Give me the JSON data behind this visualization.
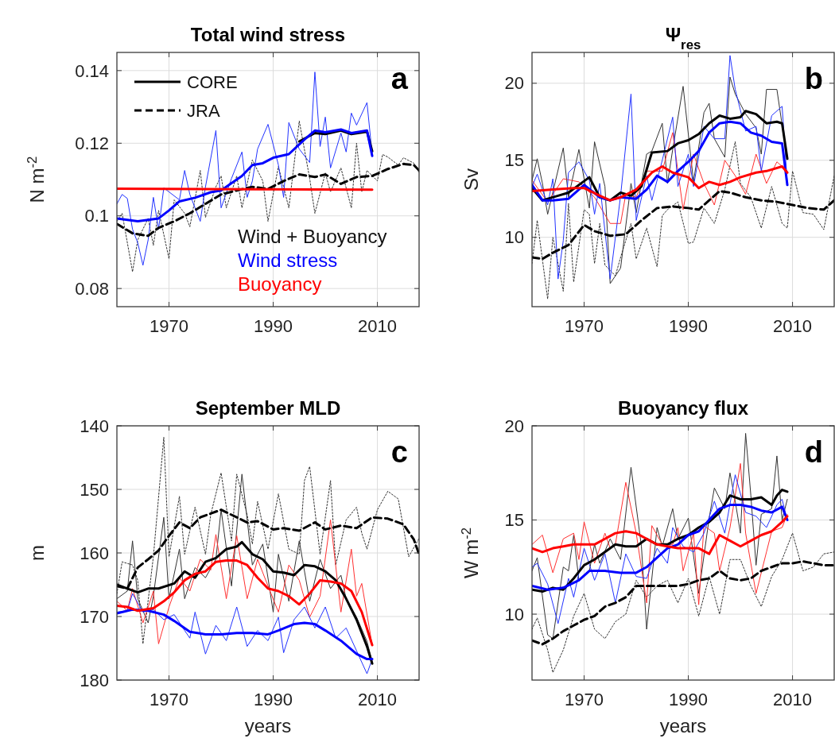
{
  "chart_data": [
    {
      "type": "line",
      "title": "Total wind stress",
      "ylabel": "N m$^{-2}$",
      "xlim": [
        1960,
        2018
      ],
      "xticks": [
        1970,
        1990,
        2010
      ],
      "ylim": [
        0.075,
        0.145
      ],
      "yticks": [
        0.08,
        0.1,
        0.12,
        0.14
      ],
      "grid": true,
      "legend": "top left",
      "annotations": [
        "a",
        "Wind + Buoyancy"
      ],
      "series": [
        {
          "color": "#333333",
          "line_style": "dotted",
          "x": [
            1960,
            1961,
            1963,
            1964,
            1966,
            1967,
            1968,
            1970,
            1971,
            1973,
            1974,
            1976,
            1977,
            1979,
            1980,
            1981,
            1983,
            1984,
            1986,
            1988,
            1989,
            1991,
            1993,
            1995,
            1997,
            1998,
            2000,
            2001,
            2003,
            2005,
            2006,
            2007,
            2008,
            2010,
            2011,
            2012,
            2014,
            2015,
            2017,
            2018
          ],
          "values": [
            0.0985,
            0.1007,
            0.0846,
            0.0934,
            0.0993,
            0.0919,
            0.1015,
            0.0882,
            0.1044,
            0.1007,
            0.097,
            0.1125,
            0.0996,
            0.108,
            0.111,
            0.1022,
            0.111,
            0.1022,
            0.1154,
            0.1096,
            0.0985,
            0.1136,
            0.1022,
            0.1261,
            0.1103,
            0.1007,
            0.1118,
            0.1066,
            0.1132,
            0.1022,
            0.12,
            0.1066,
            0.1125,
            0.1096,
            0.1169,
            0.1162,
            0.114,
            0.116,
            0.1145,
            0.112
          ]
        },
        {
          "color": "#2233ff",
          "x": [
            1960,
            1961,
            1962,
            1963,
            1964,
            1965,
            1966,
            1967,
            1968,
            1969,
            1972,
            1973,
            1974,
            1976,
            1977,
            1979,
            1980,
            1982,
            1984,
            1985,
            1986,
            1987,
            1989,
            1991,
            1992,
            1993,
            1995,
            1997,
            1998,
            1999,
            2000,
            2001,
            2003,
            2004,
            2005,
            2006,
            2008,
            2009
          ],
          "values": [
            0.1033,
            0.1059,
            0.1048,
            0.0963,
            0.0926,
            0.0864,
            0.0934,
            0.1051,
            0.0963,
            0.1077,
            0.1044,
            0.1125,
            0.1059,
            0.0985,
            0.108,
            0.1235,
            0.1022,
            0.1103,
            0.1176,
            0.1051,
            0.1096,
            0.1184,
            0.1252,
            0.114,
            0.1051,
            0.1257,
            0.1184,
            0.1147,
            0.1396,
            0.1191,
            0.1272,
            0.1132,
            0.1228,
            0.1176,
            0.1283,
            0.125,
            0.1312,
            0.1169
          ]
        },
        {
          "name": "CORE",
          "color": "#000000",
          "line_style": "solid",
          "x": [
            1995,
            1998,
            2000,
            2003,
            2005,
            2008,
            2009
          ],
          "values": [
            0.1205,
            0.1228,
            0.1225,
            0.1235,
            0.1225,
            0.1232,
            0.1178
          ]
        },
        {
          "name": "JRA",
          "color": "#000000",
          "line_style": "dashed",
          "x": [
            1960,
            1963,
            1966,
            1968,
            1971,
            1974,
            1977,
            1980,
            1983,
            1986,
            1989,
            1992,
            1995,
            1998,
            2000,
            2003,
            2006,
            2009,
            2012,
            2015,
            2017,
            2018
          ],
          "values": [
            0.0978,
            0.0952,
            0.0945,
            0.0967,
            0.0985,
            0.1007,
            0.1033,
            0.1059,
            0.107,
            0.108,
            0.1074,
            0.1096,
            0.1114,
            0.1107,
            0.1114,
            0.1088,
            0.1107,
            0.111,
            0.1129,
            0.1143,
            0.114,
            0.1125
          ]
        },
        {
          "name": "Wind stress",
          "color": "#0000ff",
          "x": [
            1960,
            1964,
            1968,
            1970,
            1972,
            1975,
            1978,
            1980,
            1982,
            1984,
            1986,
            1988,
            1990,
            1993,
            1996,
            1998,
            2000,
            2003,
            2005,
            2008,
            2009
          ],
          "values": [
            0.0993,
            0.0985,
            0.0993,
            0.1015,
            0.104,
            0.105,
            0.1065,
            0.107,
            0.109,
            0.111,
            0.114,
            0.1145,
            0.116,
            0.117,
            0.121,
            0.1235,
            0.123,
            0.1238,
            0.1228,
            0.1235,
            0.1165
          ]
        },
        {
          "name": "Buoyancy",
          "color": "#ff0000",
          "x": [
            1960,
            2009
          ],
          "values": [
            0.1075,
            0.1072
          ]
        }
      ]
    },
    {
      "type": "line",
      "title": "Ψ$_{res}$",
      "ylabel": "Sv",
      "xlim": [
        1960,
        2018
      ],
      "xticks": [
        1970,
        1990,
        2010
      ],
      "ylim": [
        5.5,
        22
      ],
      "yticks": [
        10,
        15,
        20
      ],
      "grid": true,
      "annotations": [
        "b"
      ],
      "series": [
        {
          "color": "#333333",
          "line_style": "dotted",
          "x": [
            1960,
            1961,
            1963,
            1964,
            1965,
            1966,
            1967,
            1968,
            1970,
            1971,
            1972,
            1973,
            1974,
            1976,
            1977,
            1979,
            1980,
            1982,
            1984,
            1985,
            1986,
            1988,
            1990,
            1991,
            1993,
            1995,
            1997,
            1999,
            2000,
            2002,
            2004,
            2006,
            2008,
            2009,
            2010,
            2012,
            2014,
            2016,
            2018
          ],
          "values": [
            8.3,
            11.1,
            6.0,
            10.0,
            8.3,
            6.5,
            12.2,
            7.1,
            11.8,
            11.5,
            8.3,
            10.9,
            8.2,
            7.5,
            8.7,
            10.9,
            8.6,
            10.6,
            8.1,
            11.4,
            11.8,
            12.3,
            9.6,
            9.7,
            11.9,
            10.9,
            13.1,
            16.2,
            13.5,
            12.6,
            10.6,
            13.3,
            10.9,
            10.6,
            14.3,
            11.6,
            11.5,
            10.5,
            14.0
          ]
        },
        {
          "color": "#333333",
          "x": [
            1960,
            1961,
            1962,
            1963,
            1966,
            1967,
            1969,
            1971,
            1972,
            1974,
            1975,
            1977,
            1979,
            1980,
            1982,
            1983,
            1985,
            1986,
            1987,
            1989,
            1991,
            1993,
            1994,
            1995,
            1997,
            1998,
            1999,
            2001,
            2003,
            2004,
            2005,
            2007,
            2008,
            2009
          ],
          "values": [
            13.7,
            15.1,
            13.5,
            11.5,
            15.8,
            12.6,
            15.7,
            11.9,
            16.2,
            13.3,
            7.0,
            8.0,
            13.5,
            11.6,
            15.4,
            15.6,
            17.4,
            13.5,
            15.7,
            19.8,
            13.6,
            18.1,
            18.7,
            16.4,
            15.2,
            20.4,
            19.3,
            18.0,
            17.1,
            15.4,
            19.6,
            19.6,
            17.3,
            15.1
          ]
        },
        {
          "color": "#ff3030",
          "x": [
            1960,
            1963,
            1966,
            1969,
            1972,
            1975,
            1977,
            1978,
            1980,
            1982,
            1985,
            1987,
            1989,
            1991,
            1993,
            1995,
            1997,
            1999,
            2001,
            2003,
            2005,
            2007,
            2009
          ],
          "values": [
            13.7,
            12.3,
            13.8,
            13.6,
            12.6,
            10.9,
            10.9,
            12.8,
            12.6,
            14.3,
            14.3,
            16.8,
            11.8,
            15.4,
            13.5,
            12.1,
            15.0,
            14.0,
            12.8,
            15.4,
            13.5,
            14.9,
            14.3
          ]
        },
        {
          "color": "#2233ff",
          "x": [
            1960,
            1961,
            1963,
            1964,
            1965,
            1966,
            1967,
            1969,
            1971,
            1972,
            1973,
            1975,
            1977,
            1979,
            1980,
            1982,
            1983,
            1985,
            1987,
            1988,
            1990,
            1991,
            1993,
            1995,
            1997,
            1998,
            1999,
            2001,
            2003,
            2004,
            2006,
            2008,
            2009
          ],
          "values": [
            13.3,
            14.1,
            12.1,
            13.8,
            7.3,
            9.8,
            14.2,
            14.9,
            13.7,
            11.5,
            13.5,
            7.3,
            12.7,
            19.3,
            11.1,
            14.0,
            12.4,
            15.0,
            17.8,
            13.3,
            15.4,
            13.3,
            17.2,
            16.4,
            16.4,
            21.8,
            19.6,
            16.9,
            17.2,
            14.3,
            17.9,
            18.5,
            13.5
          ]
        },
        {
          "color": "#000000",
          "line_style": "dashed",
          "x": [
            1960,
            1962,
            1964,
            1967,
            1970,
            1972,
            1975,
            1978,
            1981,
            1984,
            1987,
            1990,
            1992,
            1994,
            1996,
            1998,
            2001,
            2004,
            2007,
            2010,
            2013,
            2016,
            2018
          ],
          "values": [
            8.7,
            8.6,
            9.0,
            9.5,
            10.8,
            10.4,
            10.1,
            10.2,
            11.1,
            11.9,
            12.0,
            11.9,
            11.8,
            12.4,
            13.0,
            12.9,
            12.6,
            12.4,
            12.3,
            12.1,
            11.9,
            11.8,
            12.4
          ]
        },
        {
          "color": "#000000",
          "x": [
            1960,
            1962,
            1965,
            1967,
            1971,
            1973,
            1975,
            1977,
            1979,
            1981,
            1983,
            1986,
            1988,
            1990,
            1992,
            1994,
            1996,
            1998,
            2000,
            2001,
            2003,
            2005,
            2007,
            2008,
            2009
          ],
          "values": [
            13.2,
            12.4,
            12.7,
            12.9,
            13.9,
            12.6,
            12.4,
            12.9,
            12.7,
            13.3,
            15.5,
            15.6,
            16.1,
            16.3,
            16.7,
            17.4,
            17.9,
            17.7,
            17.8,
            18.2,
            18.0,
            17.4,
            17.5,
            17.4,
            15.1
          ]
        },
        {
          "color": "#0000ff",
          "x": [
            1960,
            1962,
            1964,
            1967,
            1970,
            1973,
            1975,
            1977,
            1980,
            1982,
            1984,
            1986,
            1988,
            1990,
            1992,
            1994,
            1996,
            1998,
            2000,
            2002,
            2004,
            2006,
            2008,
            2009
          ],
          "values": [
            13.4,
            12.4,
            12.4,
            12.5,
            13.4,
            12.6,
            12.4,
            12.6,
            12.5,
            13.1,
            14.0,
            13.6,
            14.3,
            14.9,
            15.6,
            16.8,
            17.4,
            17.5,
            17.4,
            16.8,
            16.6,
            16.2,
            16.1,
            13.4
          ]
        },
        {
          "color": "#ff0000",
          "x": [
            1960,
            1964,
            1968,
            1970,
            1973,
            1975,
            1977,
            1980,
            1983,
            1985,
            1987,
            1990,
            1992,
            1994,
            1996,
            1998,
            2000,
            2003,
            2005,
            2008,
            2009
          ],
          "values": [
            13.0,
            13.1,
            13.2,
            13.2,
            12.7,
            12.4,
            12.6,
            13.1,
            14.2,
            14.6,
            14.2,
            13.9,
            13.2,
            13.6,
            13.4,
            13.6,
            13.9,
            14.2,
            14.3,
            14.6,
            14.2
          ]
        }
      ]
    },
    {
      "type": "line",
      "title": "September MLD",
      "xlabel": "years",
      "ylabel": "m",
      "xlim": [
        1960,
        2018
      ],
      "xticks": [
        1970,
        1990,
        2010
      ],
      "ylim": [
        180,
        140
      ],
      "yticks": [
        140,
        150,
        160,
        170,
        180
      ],
      "grid": true,
      "annotations": [
        "c"
      ],
      "series": [
        {
          "color": "#333333",
          "line_style": "dotted",
          "x": [
            1960,
            1961,
            1963,
            1964,
            1965,
            1967,
            1969,
            1970,
            1972,
            1973,
            1975,
            1977,
            1978,
            1980,
            1982,
            1983,
            1985,
            1986,
            1987,
            1989,
            1991,
            1993,
            1995,
            1996,
            1997,
            1999,
            2001,
            2002,
            2004,
            2006,
            2007,
            2008,
            2010,
            2012,
            2014,
            2016,
            2018
          ],
          "values": [
            166.4,
            161.4,
            161.9,
            164.3,
            174.3,
            160.6,
            141.8,
            160.6,
            151.1,
            160.2,
            152.8,
            160.2,
            154.0,
            147.4,
            158.1,
            147.6,
            154.0,
            158.6,
            151.9,
            159.4,
            150.7,
            159.4,
            160.2,
            148.6,
            146.4,
            160.2,
            148.6,
            161.9,
            154.8,
            152.8,
            156.9,
            159.4,
            153.2,
            150.3,
            151.5,
            160.6,
            157.7
          ]
        },
        {
          "color": "#333333",
          "x": [
            1960,
            1962,
            1963,
            1964,
            1966,
            1967,
            1969,
            1970,
            1972,
            1973,
            1975,
            1977,
            1979,
            1980,
            1982,
            1984,
            1986,
            1988,
            1990,
            1991,
            1993,
            1995,
            1997,
            1999,
            2001,
            2003,
            2004,
            2006,
            2008,
            2009
          ],
          "values": [
            167.2,
            166.0,
            158.1,
            167.2,
            171.0,
            166.8,
            154.4,
            167.2,
            159.4,
            167.2,
            162.3,
            163.9,
            161.0,
            153.2,
            165.2,
            147.6,
            161.9,
            158.6,
            169.3,
            160.2,
            167.6,
            158.1,
            167.6,
            161.0,
            165.6,
            163.5,
            167.2,
            170.1,
            173.9,
            177.1
          ]
        },
        {
          "color": "#ff3030",
          "x": [
            1960,
            1962,
            1963,
            1965,
            1967,
            1968,
            1970,
            1972,
            1974,
            1976,
            1978,
            1979,
            1981,
            1983,
            1985,
            1987,
            1989,
            1991,
            1993,
            1995,
            1997,
            1999,
            2001,
            2003,
            2005,
            2006,
            2007,
            2009
          ],
          "values": [
            167.6,
            169.1,
            165.6,
            171.0,
            166.0,
            174.3,
            168.5,
            163.9,
            166.0,
            161.0,
            162.7,
            157.1,
            167.2,
            157.3,
            167.2,
            161.0,
            165.2,
            169.3,
            161.9,
            164.3,
            170.1,
            166.8,
            154.8,
            169.3,
            159.4,
            166.8,
            164.8,
            174.5
          ]
        },
        {
          "color": "#2233ff",
          "x": [
            1960,
            1962,
            1963,
            1965,
            1967,
            1969,
            1971,
            1973,
            1974,
            1975,
            1977,
            1979,
            1981,
            1983,
            1985,
            1987,
            1989,
            1991,
            1992,
            1994,
            1996,
            1998,
            2000,
            2002,
            2004,
            2006,
            2008,
            2009
          ],
          "values": [
            169.3,
            169.1,
            166.4,
            169.3,
            168.9,
            170.5,
            169.7,
            172.2,
            173.4,
            169.3,
            175.9,
            171.4,
            173.8,
            168.5,
            174.7,
            172.2,
            173.8,
            170.1,
            175.7,
            170.5,
            168.5,
            171.8,
            168.5,
            173.4,
            171.8,
            175.4,
            179.0,
            176.7
          ]
        },
        {
          "color": "#000000",
          "line_style": "dashed",
          "x": [
            1960,
            1962,
            1964,
            1966,
            1968,
            1970,
            1972,
            1974,
            1976,
            1978,
            1980,
            1982,
            1985,
            1987,
            1990,
            1992,
            1995,
            1998,
            2000,
            2003,
            2006,
            2009,
            2012,
            2015,
            2017,
            2018
          ],
          "values": [
            165.2,
            165.6,
            162.3,
            161.0,
            159.6,
            157.3,
            155.2,
            156.1,
            154.4,
            153.8,
            153.2,
            154.0,
            155.2,
            155.0,
            156.3,
            156.1,
            156.5,
            155.2,
            156.3,
            155.7,
            156.1,
            154.4,
            154.6,
            155.5,
            157.9,
            160.2
          ]
        },
        {
          "color": "#000000",
          "x": [
            1960,
            1962,
            1964,
            1966,
            1968,
            1971,
            1973,
            1975,
            1977,
            1979,
            1981,
            1983,
            1984,
            1986,
            1988,
            1990,
            1992,
            1994,
            1996,
            1998,
            2000,
            2002,
            2004,
            2006,
            2008,
            2009
          ],
          "values": [
            165.0,
            165.6,
            166.2,
            165.6,
            165.6,
            164.8,
            162.9,
            163.9,
            161.4,
            160.8,
            159.4,
            159.0,
            158.3,
            160.2,
            161.0,
            162.9,
            163.1,
            163.5,
            161.9,
            162.1,
            162.9,
            164.3,
            167.2,
            170.5,
            174.7,
            177.4
          ]
        },
        {
          "color": "#0000ff",
          "x": [
            1960,
            1963,
            1966,
            1969,
            1971,
            1974,
            1977,
            1980,
            1983,
            1986,
            1989,
            1991,
            1994,
            1996,
            1998,
            2000,
            2003,
            2006,
            2008,
            2009
          ],
          "values": [
            169.5,
            168.9,
            169.1,
            169.7,
            170.7,
            172.4,
            172.8,
            172.8,
            172.6,
            172.6,
            172.8,
            172.2,
            171.2,
            171.0,
            171.2,
            172.2,
            173.8,
            175.9,
            176.7,
            176.7
          ]
        },
        {
          "color": "#ff0000",
          "x": [
            1960,
            1962,
            1964,
            1967,
            1969,
            1971,
            1973,
            1975,
            1977,
            1979,
            1981,
            1983,
            1985,
            1987,
            1989,
            1991,
            1993,
            1995,
            1997,
            1999,
            2001,
            2003,
            2005,
            2007,
            2009
          ],
          "values": [
            168.3,
            168.5,
            169.1,
            168.7,
            167.6,
            166.2,
            164.3,
            163.3,
            162.9,
            161.4,
            161.2,
            161.2,
            161.9,
            163.9,
            165.6,
            166.0,
            166.8,
            168.1,
            166.4,
            164.3,
            164.5,
            164.8,
            166.0,
            169.3,
            174.5
          ]
        }
      ]
    },
    {
      "type": "line",
      "title": "Buoyancy flux",
      "xlabel": "years",
      "ylabel": "W m$^{-2}$",
      "xlim": [
        1960,
        2018
      ],
      "xticks": [
        1970,
        1990,
        2010
      ],
      "ylim": [
        6.5,
        20
      ],
      "yticks": [
        10,
        15,
        20
      ],
      "grid": true,
      "annotations": [
        "d"
      ],
      "series": [
        {
          "color": "#333333",
          "line_style": "dotted",
          "x": [
            1960,
            1961,
            1963,
            1964,
            1966,
            1968,
            1970,
            1972,
            1974,
            1976,
            1978,
            1980,
            1982,
            1984,
            1986,
            1988,
            1990,
            1992,
            1994,
            1996,
            1998,
            2000,
            2002,
            2004,
            2006,
            2008,
            2010,
            2012,
            2014,
            2016,
            2018
          ],
          "values": [
            9.2,
            9.8,
            8.1,
            6.9,
            8.1,
            9.9,
            11.1,
            9.2,
            8.7,
            9.6,
            10.0,
            11.8,
            10.9,
            11.5,
            11.8,
            10.6,
            11.9,
            9.9,
            12.0,
            10.0,
            12.9,
            12.9,
            11.5,
            10.4,
            12.0,
            12.9,
            14.3,
            12.3,
            12.5,
            13.2,
            13.3
          ]
        },
        {
          "color": "#333333",
          "x": [
            1960,
            1961,
            1963,
            1964,
            1966,
            1967,
            1968,
            1969,
            1971,
            1972,
            1973,
            1975,
            1977,
            1979,
            1981,
            1982,
            1984,
            1985,
            1987,
            1988,
            1990,
            1992,
            1994,
            1995,
            1997,
            1998,
            1999,
            2000,
            2001,
            2002,
            2003,
            2004,
            2006,
            2007,
            2008,
            2009
          ],
          "values": [
            12.3,
            13.0,
            8.9,
            8.7,
            12.5,
            12.3,
            14.2,
            11.8,
            12.3,
            13.7,
            12.7,
            14.0,
            12.9,
            17.8,
            13.6,
            9.2,
            14.6,
            13.6,
            15.6,
            14.0,
            15.1,
            11.1,
            15.1,
            16.7,
            15.6,
            17.5,
            16.0,
            14.3,
            19.6,
            16.3,
            12.6,
            15.3,
            15.6,
            18.4,
            15.0,
            16.1
          ]
        },
        {
          "color": "#ff3030",
          "x": [
            1960,
            1962,
            1964,
            1966,
            1968,
            1969,
            1970,
            1972,
            1974,
            1975,
            1976,
            1978,
            1980,
            1982,
            1983,
            1985,
            1987,
            1988,
            1989,
            1991,
            1992,
            1993,
            1995,
            1996,
            1998,
            2000,
            2001,
            2003,
            2005,
            2006,
            2008,
            2009
          ],
          "values": [
            13.7,
            14.2,
            12.2,
            14.0,
            14.3,
            12.9,
            14.9,
            12.7,
            14.3,
            13.5,
            13.7,
            17.0,
            14.3,
            10.6,
            14.7,
            13.7,
            13.7,
            14.6,
            12.3,
            14.3,
            10.5,
            14.7,
            14.3,
            12.3,
            14.6,
            18.0,
            14.3,
            11.1,
            13.3,
            14.4,
            14.6,
            15.3
          ]
        },
        {
          "color": "#2233ff",
          "x": [
            1960,
            1961,
            1963,
            1965,
            1967,
            1968,
            1970,
            1972,
            1974,
            1976,
            1978,
            1980,
            1982,
            1984,
            1986,
            1987,
            1989,
            1991,
            1993,
            1995,
            1997,
            1999,
            2001,
            2003,
            2005,
            2007,
            2008,
            2009
          ],
          "values": [
            12.5,
            12.7,
            11.6,
            9.5,
            11.9,
            10.9,
            13.5,
            11.8,
            13.2,
            10.6,
            13.2,
            12.0,
            11.9,
            13.5,
            12.7,
            14.6,
            13.6,
            13.3,
            14.3,
            16.0,
            14.3,
            17.4,
            15.4,
            15.2,
            14.6,
            15.8,
            16.1,
            15.0
          ]
        },
        {
          "color": "#000000",
          "line_style": "dashed",
          "x": [
            1960,
            1962,
            1964,
            1966,
            1968,
            1970,
            1972,
            1974,
            1976,
            1978,
            1980,
            1982,
            1985,
            1988,
            1990,
            1992,
            1994,
            1996,
            1998,
            2000,
            2002,
            2004,
            2006,
            2008,
            2010,
            2012,
            2014,
            2016,
            2018
          ],
          "values": [
            8.6,
            8.4,
            8.7,
            9.1,
            9.4,
            9.7,
            9.9,
            10.4,
            10.6,
            10.9,
            11.5,
            11.5,
            11.5,
            11.5,
            11.6,
            11.8,
            11.9,
            12.3,
            11.9,
            11.8,
            11.9,
            12.3,
            12.5,
            12.7,
            12.7,
            12.8,
            12.7,
            12.6,
            12.6
          ]
        },
        {
          "color": "#000000",
          "x": [
            1960,
            1962,
            1964,
            1966,
            1968,
            1970,
            1972,
            1974,
            1976,
            1978,
            1980,
            1982,
            1984,
            1986,
            1988,
            1990,
            1992,
            1994,
            1996,
            1998,
            2000,
            2002,
            2004,
            2006,
            2007,
            2008,
            2009
          ],
          "values": [
            11.3,
            11.2,
            11.4,
            11.3,
            11.9,
            12.6,
            12.9,
            13.3,
            13.7,
            13.6,
            13.6,
            14.0,
            13.7,
            13.7,
            14.0,
            14.2,
            14.6,
            14.9,
            15.4,
            16.3,
            16.1,
            16.1,
            16.2,
            15.8,
            16.3,
            16.6,
            16.5
          ]
        },
        {
          "color": "#0000ff",
          "x": [
            1960,
            1963,
            1966,
            1969,
            1971,
            1974,
            1977,
            1980,
            1982,
            1984,
            1986,
            1988,
            1990,
            1992,
            1994,
            1996,
            1998,
            2000,
            2002,
            2004,
            2006,
            2008,
            2009
          ],
          "values": [
            11.5,
            11.3,
            11.4,
            11.8,
            12.3,
            12.3,
            12.2,
            12.2,
            12.5,
            13.0,
            13.5,
            13.7,
            14.2,
            14.4,
            15.0,
            15.6,
            15.8,
            15.8,
            15.7,
            15.5,
            15.4,
            15.7,
            15.0
          ]
        },
        {
          "color": "#ff0000",
          "x": [
            1960,
            1962,
            1964,
            1966,
            1968,
            1970,
            1972,
            1974,
            1976,
            1978,
            1980,
            1982,
            1984,
            1986,
            1988,
            1990,
            1992,
            1994,
            1996,
            1998,
            2000,
            2002,
            2004,
            2006,
            2008,
            2009
          ],
          "values": [
            13.5,
            13.3,
            13.5,
            13.6,
            13.7,
            13.7,
            13.7,
            14.0,
            14.3,
            14.4,
            14.3,
            14.0,
            13.7,
            13.6,
            13.5,
            13.5,
            13.5,
            13.2,
            14.2,
            13.9,
            13.6,
            13.9,
            14.2,
            14.4,
            14.9,
            15.2
          ]
        }
      ]
    }
  ]
}
